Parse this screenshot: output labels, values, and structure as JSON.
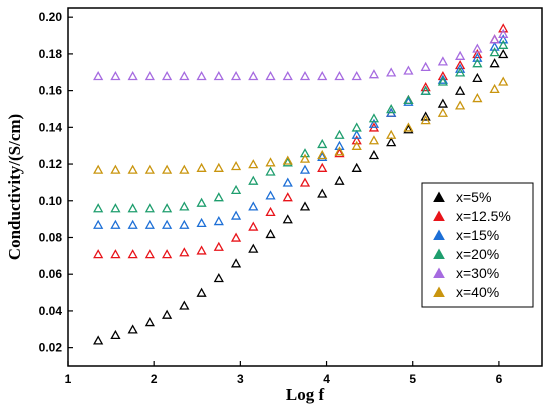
{
  "chart_data": {
    "type": "scatter",
    "title": "",
    "xlabel": "Log f",
    "ylabel": "Conductivity/(S/cm)",
    "xlim": [
      1,
      6.5
    ],
    "ylim": [
      0.01,
      0.205
    ],
    "xticks": [
      1,
      2,
      3,
      4,
      5,
      6
    ],
    "yticks": [
      0.02,
      0.04,
      0.06,
      0.08,
      0.1,
      0.12,
      0.14,
      0.16,
      0.18,
      0.2
    ],
    "ytick_labels": [
      "0.02",
      "0.04",
      "0.06",
      "0.08",
      "0.10",
      "0.12",
      "0.14",
      "0.16",
      "0.18",
      "0.20"
    ],
    "xtick_labels": [
      "1",
      "2",
      "3",
      "4",
      "5",
      "6"
    ],
    "grid": false,
    "legend_position": "right-middle",
    "marker": "hollow-triangle",
    "x": [
      1.35,
      1.55,
      1.75,
      1.95,
      2.15,
      2.35,
      2.55,
      2.75,
      2.95,
      3.15,
      3.35,
      3.55,
      3.75,
      3.95,
      4.15,
      4.35,
      4.55,
      4.75,
      4.95,
      5.15,
      5.35,
      5.55,
      5.75,
      5.95,
      6.05
    ],
    "series": [
      {
        "name": "x=5%",
        "color": "#000000",
        "values": [
          0.024,
          0.027,
          0.03,
          0.034,
          0.038,
          0.043,
          0.05,
          0.058,
          0.066,
          0.074,
          0.082,
          0.09,
          0.097,
          0.104,
          0.111,
          0.118,
          0.125,
          0.132,
          0.139,
          0.146,
          0.153,
          0.16,
          0.167,
          0.175,
          0.18
        ]
      },
      {
        "name": "x=12.5%",
        "color": "#e8141a",
        "values": [
          0.071,
          0.071,
          0.071,
          0.071,
          0.071,
          0.072,
          0.073,
          0.075,
          0.08,
          0.086,
          0.094,
          0.102,
          0.11,
          0.118,
          0.126,
          0.133,
          0.14,
          0.148,
          0.155,
          0.162,
          0.168,
          0.174,
          0.18,
          0.188,
          0.194
        ]
      },
      {
        "name": "x=15%",
        "color": "#1d6fd6",
        "values": [
          0.087,
          0.087,
          0.087,
          0.087,
          0.087,
          0.087,
          0.088,
          0.089,
          0.092,
          0.097,
          0.103,
          0.11,
          0.117,
          0.124,
          0.13,
          0.136,
          0.142,
          0.148,
          0.154,
          0.16,
          0.166,
          0.172,
          0.178,
          0.184,
          0.188
        ]
      },
      {
        "name": "x=20%",
        "color": "#1f9e6e",
        "values": [
          0.096,
          0.096,
          0.096,
          0.096,
          0.096,
          0.097,
          0.099,
          0.102,
          0.106,
          0.111,
          0.116,
          0.121,
          0.126,
          0.131,
          0.136,
          0.14,
          0.145,
          0.15,
          0.155,
          0.16,
          0.165,
          0.17,
          0.175,
          0.181,
          0.185
        ]
      },
      {
        "name": "x=30%",
        "color": "#a66be0",
        "values": [
          0.168,
          0.168,
          0.168,
          0.168,
          0.168,
          0.168,
          0.168,
          0.168,
          0.168,
          0.168,
          0.168,
          0.168,
          0.168,
          0.168,
          0.168,
          0.168,
          0.169,
          0.17,
          0.171,
          0.173,
          0.176,
          0.179,
          0.183,
          0.188,
          0.191
        ]
      },
      {
        "name": "x=40%",
        "color": "#c9950f",
        "values": [
          0.117,
          0.117,
          0.117,
          0.117,
          0.117,
          0.117,
          0.118,
          0.118,
          0.119,
          0.12,
          0.121,
          0.122,
          0.123,
          0.125,
          0.127,
          0.13,
          0.133,
          0.136,
          0.14,
          0.144,
          0.148,
          0.152,
          0.156,
          0.161,
          0.165
        ]
      }
    ]
  }
}
